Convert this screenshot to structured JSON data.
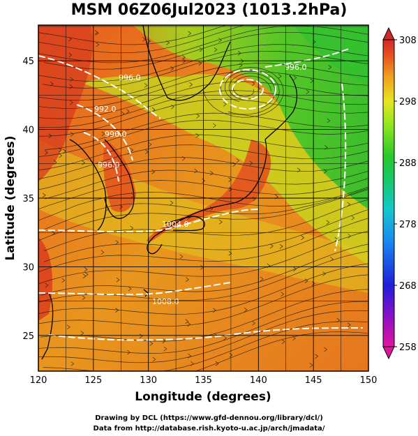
{
  "title": "MSM 06Z06Jul2023 (1013.2hPa)",
  "x_axis": {
    "label": "Longitude (degrees)",
    "ticks": [
      "120",
      "125",
      "130",
      "135",
      "140",
      "145",
      "150"
    ],
    "range": [
      120,
      150
    ]
  },
  "y_axis": {
    "label": "Latitude  (degrees)",
    "ticks": [
      "25",
      "30",
      "35",
      "40",
      "45"
    ],
    "range": [
      22.4,
      47.6
    ]
  },
  "colorbar": {
    "ticks": [
      "258",
      "268",
      "278",
      "288",
      "298",
      "308"
    ],
    "range": [
      258,
      308
    ],
    "colors": [
      "#e0149c",
      "#8a10c8",
      "#1e1edc",
      "#1a8cf0",
      "#14c8c8",
      "#18c864",
      "#28c82a",
      "#8ce61e",
      "#e6e61e",
      "#f0a01e",
      "#e8501e",
      "#d22828"
    ]
  },
  "contour_labels": [
    "996.0",
    "996.0",
    "992.0",
    "996.0",
    "996.0",
    "1004.0",
    "1008.0"
  ],
  "credits": [
    "Drawing by DCL (https://www.gfd-dennou.org/library/dcl/)",
    "Data from http://database.rish.kyoto-u.ac.jp/arch/jmadata/"
  ]
}
